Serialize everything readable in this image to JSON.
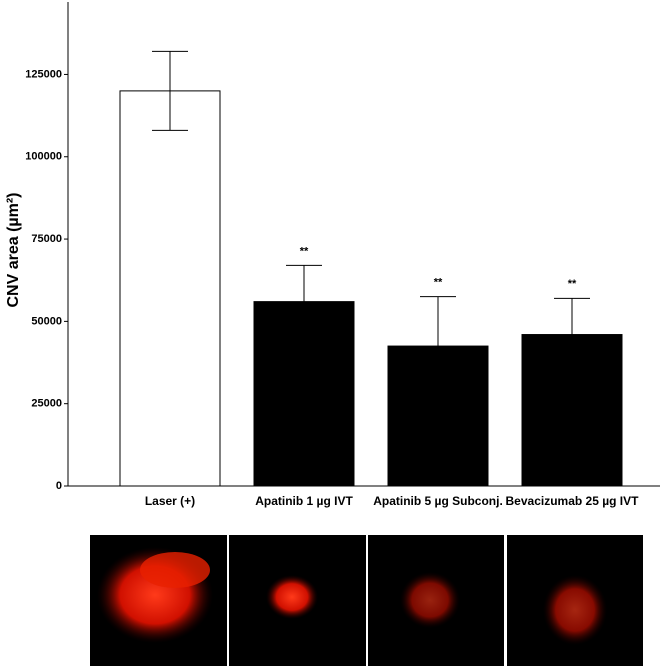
{
  "chart_data": {
    "type": "bar",
    "ylabel": "CNV area (µm²)",
    "categories": [
      "Laser (+)",
      "Apatinib 1 µg IVT",
      "Apatinib 5 µg Subconj.",
      "Bevacizumab 25 µg IVT"
    ],
    "values": [
      120000,
      56000,
      42500,
      46000
    ],
    "errors": [
      12000,
      11000,
      15000,
      11000
    ],
    "colors": [
      "#ffffff",
      "#000000",
      "#000000",
      "#000000"
    ],
    "annotations": [
      null,
      "**",
      "**",
      "**"
    ],
    "ylim": [
      0,
      147000
    ],
    "yticks": [
      0,
      25000,
      50000,
      75000,
      100000,
      125000
    ],
    "grid": false
  }
}
